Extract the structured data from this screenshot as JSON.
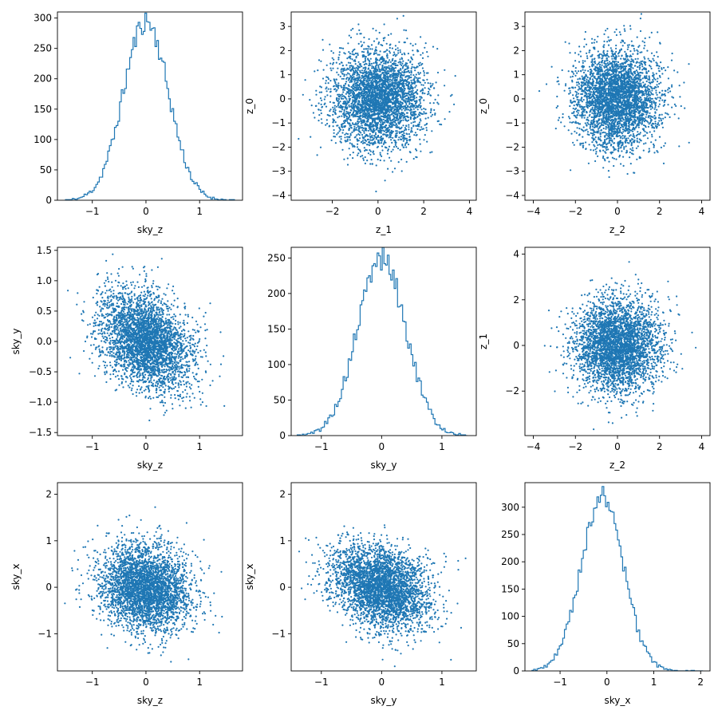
{
  "colors": {
    "series": "#1f77b4",
    "axis": "#000000",
    "background": "#ffffff"
  },
  "chart_data": [
    {
      "type": "histogram",
      "xlabel": "sky_z",
      "ylabel": "",
      "xlim": [
        -1.65,
        1.8
      ],
      "ylim": [
        0,
        310
      ],
      "xticks": [
        -1,
        0,
        1
      ],
      "yticks": [
        0,
        50,
        100,
        150,
        200,
        250,
        300
      ],
      "xtick_labels": [
        "−1",
        "0",
        "1"
      ],
      "ytick_labels": [
        "0",
        "50",
        "100",
        "150",
        "200",
        "250",
        "300"
      ],
      "hist": {
        "mu": 0.0,
        "sigma": 0.42,
        "peak": 295,
        "lo": -1.5,
        "hi": 1.65,
        "bins": 100,
        "seed": 11
      }
    },
    {
      "type": "scatter",
      "xlabel": "z_1",
      "ylabel": "z_0",
      "xlim": [
        -3.8,
        4.3
      ],
      "ylim": [
        -4.2,
        3.6
      ],
      "xticks": [
        -2,
        0,
        2,
        4
      ],
      "yticks": [
        -4,
        -3,
        -2,
        -1,
        0,
        1,
        2,
        3
      ],
      "xtick_labels": [
        "−2",
        "0",
        "2",
        "4"
      ],
      "ytick_labels": [
        "−4",
        "−3",
        "−2",
        "−1",
        "0",
        "1",
        "2",
        "3"
      ],
      "points": {
        "mux": 0,
        "sx": 1.0,
        "muy": 0,
        "sy": 1.0,
        "rho": 0,
        "n": 3500,
        "seed": 2
      }
    },
    {
      "type": "scatter",
      "xlabel": "z_2",
      "ylabel": "z_0",
      "xlim": [
        -4.4,
        4.4
      ],
      "ylim": [
        -4.2,
        3.6
      ],
      "xticks": [
        -4,
        -2,
        0,
        2,
        4
      ],
      "yticks": [
        -4,
        -3,
        -2,
        -1,
        0,
        1,
        2,
        3
      ],
      "xtick_labels": [
        "−4",
        "−2",
        "0",
        "2",
        "4"
      ],
      "ytick_labels": [
        "−4",
        "−3",
        "−2",
        "−1",
        "0",
        "1",
        "2",
        "3"
      ],
      "points": {
        "mux": 0,
        "sx": 1.0,
        "muy": 0,
        "sy": 1.0,
        "rho": 0,
        "n": 3500,
        "seed": 3
      }
    },
    {
      "type": "scatter",
      "xlabel": "sky_z",
      "ylabel": "sky_y",
      "xlim": [
        -1.65,
        1.8
      ],
      "ylim": [
        -1.55,
        1.55
      ],
      "xticks": [
        -1,
        0,
        1
      ],
      "yticks": [
        -1.5,
        -1.0,
        -0.5,
        0.0,
        0.5,
        1.0,
        1.5
      ],
      "xtick_labels": [
        "−1",
        "0",
        "1"
      ],
      "ytick_labels": [
        "−1.5",
        "−1.0",
        "−0.5",
        "0.0",
        "0.5",
        "1.0",
        "1.5"
      ],
      "points": {
        "mux": 0,
        "sx": 0.42,
        "muy": 0,
        "sy": 0.4,
        "rho": -0.3,
        "n": 3500,
        "seed": 4
      }
    },
    {
      "type": "histogram",
      "xlabel": "sky_y",
      "ylabel": "",
      "xlim": [
        -1.5,
        1.57
      ],
      "ylim": [
        0,
        265
      ],
      "xticks": [
        -1,
        0,
        1
      ],
      "yticks": [
        0,
        50,
        100,
        150,
        200,
        250
      ],
      "xtick_labels": [
        "−1",
        "0",
        "1"
      ],
      "ytick_labels": [
        "0",
        "50",
        "100",
        "150",
        "200",
        "250"
      ],
      "hist": {
        "mu": 0.0,
        "sigma": 0.4,
        "peak": 250,
        "lo": -1.4,
        "hi": 1.42,
        "bins": 100,
        "seed": 5
      }
    },
    {
      "type": "scatter",
      "xlabel": "z_2",
      "ylabel": "z_1",
      "xlim": [
        -4.4,
        4.4
      ],
      "ylim": [
        -3.95,
        4.3
      ],
      "xticks": [
        -4,
        -2,
        0,
        2,
        4
      ],
      "yticks": [
        -2,
        0,
        2,
        4
      ],
      "xtick_labels": [
        "−4",
        "−2",
        "0",
        "2",
        "4"
      ],
      "ytick_labels": [
        "−2",
        "0",
        "2",
        "4"
      ],
      "points": {
        "mux": 0,
        "sx": 1.0,
        "muy": 0,
        "sy": 1.0,
        "rho": 0,
        "n": 3500,
        "seed": 6
      }
    },
    {
      "type": "scatter",
      "xlabel": "sky_z",
      "ylabel": "sky_x",
      "xlim": [
        -1.65,
        1.8
      ],
      "ylim": [
        -1.8,
        2.25
      ],
      "xticks": [
        -1,
        0,
        1
      ],
      "yticks": [
        -1,
        0,
        1,
        2
      ],
      "xtick_labels": [
        "−1",
        "0",
        "1"
      ],
      "ytick_labels": [
        "−1",
        "0",
        "1",
        "2"
      ],
      "points": {
        "mux": 0,
        "sx": 0.42,
        "muy": 0,
        "sy": 0.45,
        "rho": -0.15,
        "n": 3500,
        "seed": 7
      }
    },
    {
      "type": "scatter",
      "xlabel": "sky_y",
      "ylabel": "sky_x",
      "xlim": [
        -1.5,
        1.57
      ],
      "ylim": [
        -1.8,
        2.25
      ],
      "xticks": [
        -1,
        0,
        1
      ],
      "yticks": [
        -1,
        0,
        1,
        2
      ],
      "xtick_labels": [
        "−1",
        "0",
        "1"
      ],
      "ytick_labels": [
        "−1",
        "0",
        "1",
        "2"
      ],
      "points": {
        "mux": 0,
        "sx": 0.4,
        "muy": 0,
        "sy": 0.45,
        "rho": -0.3,
        "n": 3500,
        "seed": 8
      }
    },
    {
      "type": "histogram",
      "xlabel": "sky_x",
      "ylabel": "",
      "xlim": [
        -1.75,
        2.2
      ],
      "ylim": [
        0,
        345
      ],
      "xticks": [
        -1,
        0,
        1,
        2
      ],
      "yticks": [
        0,
        50,
        100,
        150,
        200,
        250,
        300
      ],
      "xtick_labels": [
        "−1",
        "0",
        "1",
        "2"
      ],
      "ytick_labels": [
        "0",
        "50",
        "100",
        "150",
        "200",
        "250",
        "300"
      ],
      "hist": {
        "mu": -0.1,
        "sigma": 0.45,
        "peak": 320,
        "lo": -1.6,
        "hi": 2.05,
        "bins": 100,
        "seed": 9
      }
    }
  ]
}
